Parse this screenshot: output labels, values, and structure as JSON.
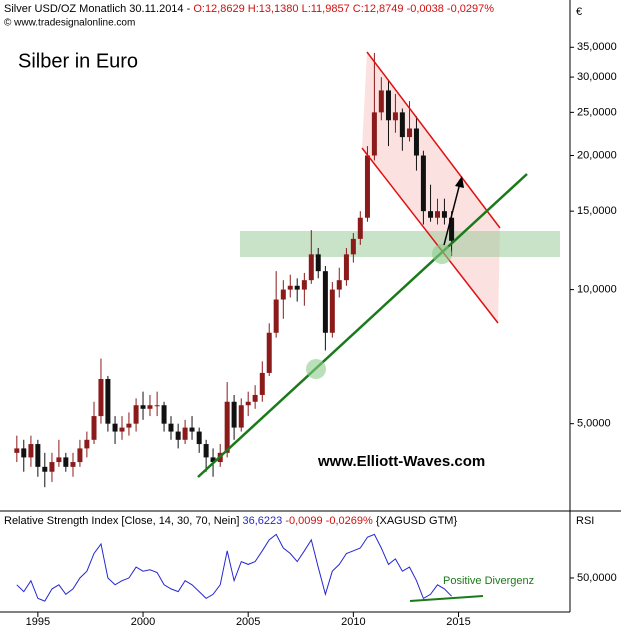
{
  "chart_data": {
    "type": "candlestick",
    "header": "Silver USD/OZ Monatlich  30.11.2014 -",
    "header_values": "O:12,8629 H:13,1380 L:11,9857 C:12,8749 -0,0038 -0,0297%",
    "copyright": "© www.tradesignalonline.com",
    "title": "Silber in Euro",
    "watermark": "www.Elliott-Waves.com",
    "currency_label": "€",
    "log": true,
    "up_color": "#8b1a1a",
    "down_color": "#111111",
    "xlim": [
      1993.2,
      2020.3
    ],
    "xticks": [
      1995,
      2000,
      2005,
      2010,
      2015
    ],
    "ylim": [
      3.2,
      40.3
    ],
    "yticks": [
      {
        "value": 5,
        "label": "5,0000"
      },
      {
        "value": 10,
        "label": "10,0000"
      },
      {
        "value": 15,
        "label": "15,0000"
      },
      {
        "value": 20,
        "label": "20,0000"
      },
      {
        "value": 25,
        "label": "25,0000"
      },
      {
        "value": 30,
        "label": "30,0000"
      },
      {
        "value": 35,
        "label": "35,0000"
      }
    ],
    "x": [
      1994,
      1994.33,
      1994.67,
      1995,
      1995.33,
      1995.67,
      1996,
      1996.33,
      1996.67,
      1997,
      1997.33,
      1997.67,
      1998,
      1998.33,
      1998.67,
      1999,
      1999.33,
      1999.67,
      2000,
      2000.33,
      2000.67,
      2001,
      2001.33,
      2001.67,
      2002,
      2002.33,
      2002.67,
      2003,
      2003.33,
      2003.67,
      2004,
      2004.33,
      2004.67,
      2005,
      2005.33,
      2005.67,
      2006,
      2006.33,
      2006.67,
      2007,
      2007.33,
      2007.67,
      2008,
      2008.33,
      2008.67,
      2009,
      2009.33,
      2009.67,
      2010,
      2010.33,
      2010.67,
      2011,
      2011.33,
      2011.67,
      2012,
      2012.33,
      2012.67,
      2013,
      2013.33,
      2013.67,
      2014,
      2014.33,
      2014.67
    ],
    "ohlc": [
      [
        4.3,
        4.7,
        4.1,
        4.4
      ],
      [
        4.4,
        4.6,
        3.9,
        4.2
      ],
      [
        4.2,
        4.7,
        4.0,
        4.5
      ],
      [
        4.5,
        4.6,
        3.8,
        4.0
      ],
      [
        4.0,
        4.3,
        3.6,
        3.9
      ],
      [
        3.9,
        4.3,
        3.7,
        4.1
      ],
      [
        4.1,
        4.6,
        4.0,
        4.2
      ],
      [
        4.2,
        4.3,
        3.9,
        4.0
      ],
      [
        4.0,
        4.3,
        3.8,
        4.1
      ],
      [
        4.1,
        4.6,
        4.0,
        4.4
      ],
      [
        4.4,
        4.8,
        4.2,
        4.6
      ],
      [
        4.6,
        5.6,
        4.5,
        5.2
      ],
      [
        5.2,
        7.0,
        5.0,
        6.3
      ],
      [
        6.3,
        6.4,
        4.8,
        5.0
      ],
      [
        5.0,
        5.2,
        4.5,
        4.8
      ],
      [
        4.8,
        5.2,
        4.6,
        4.9
      ],
      [
        4.9,
        5.3,
        4.7,
        5.0
      ],
      [
        5.0,
        5.7,
        4.8,
        5.5
      ],
      [
        5.5,
        5.9,
        5.1,
        5.4
      ],
      [
        5.4,
        5.8,
        5.2,
        5.5
      ],
      [
        5.5,
        5.9,
        5.2,
        5.5
      ],
      [
        5.5,
        5.6,
        4.8,
        5.0
      ],
      [
        5.0,
        5.2,
        4.6,
        4.8
      ],
      [
        4.8,
        5.0,
        4.4,
        4.6
      ],
      [
        4.6,
        5.1,
        4.5,
        4.9
      ],
      [
        4.9,
        5.2,
        4.6,
        4.8
      ],
      [
        4.8,
        4.9,
        4.3,
        4.5
      ],
      [
        4.5,
        4.6,
        3.9,
        4.2
      ],
      [
        4.2,
        4.4,
        3.8,
        4.1
      ],
      [
        4.1,
        4.5,
        4.0,
        4.3
      ],
      [
        4.3,
        6.2,
        4.2,
        5.6
      ],
      [
        5.6,
        5.8,
        4.6,
        4.9
      ],
      [
        4.9,
        5.7,
        4.8,
        5.5
      ],
      [
        5.5,
        5.9,
        5.2,
        5.6
      ],
      [
        5.6,
        6.1,
        5.4,
        5.8
      ],
      [
        5.8,
        6.9,
        5.6,
        6.5
      ],
      [
        6.5,
        8.4,
        6.4,
        8.0
      ],
      [
        8.0,
        11.0,
        7.8,
        9.5
      ],
      [
        9.5,
        10.5,
        8.6,
        10.0
      ],
      [
        10.0,
        10.8,
        9.6,
        10.2
      ],
      [
        10.2,
        10.6,
        9.4,
        10.0
      ],
      [
        10.0,
        10.9,
        9.2,
        10.5
      ],
      [
        10.5,
        13.6,
        10.3,
        12.0
      ],
      [
        12.0,
        12.4,
        10.6,
        11.0
      ],
      [
        11.0,
        11.3,
        7.3,
        8.0
      ],
      [
        8.0,
        10.4,
        7.8,
        10.0
      ],
      [
        10.0,
        11.2,
        9.6,
        10.5
      ],
      [
        10.5,
        12.4,
        10.2,
        12.0
      ],
      [
        12.0,
        13.4,
        11.5,
        13.0
      ],
      [
        13.0,
        15.0,
        12.6,
        14.5
      ],
      [
        14.5,
        21.0,
        14.2,
        20.0
      ],
      [
        20.0,
        34.0,
        19.5,
        25.0
      ],
      [
        25.0,
        30.0,
        24.0,
        28.0
      ],
      [
        28.0,
        29.5,
        21.0,
        24.0
      ],
      [
        24.0,
        27.5,
        22.5,
        25.0
      ],
      [
        25.0,
        25.5,
        20.5,
        22.0
      ],
      [
        22.0,
        26.5,
        21.5,
        23.0
      ],
      [
        23.0,
        24.5,
        18.5,
        20.0
      ],
      [
        20.0,
        20.5,
        14.0,
        15.0
      ],
      [
        15.0,
        17.2,
        14.2,
        14.5
      ],
      [
        14.5,
        16.0,
        14.0,
        15.0
      ],
      [
        15.0,
        16.0,
        14.0,
        14.5
      ],
      [
        14.5,
        15.0,
        11.9,
        12.87
      ]
    ],
    "rsi_panel": {
      "type": "line",
      "title": "Relative Strength Index [Close, 14, 30, 70, Nein]",
      "last_value": "36,6223",
      "change": "-0,0099 -0,0269%",
      "symbol": "{XAGUSD GTM}",
      "axis_label": "RSI",
      "annotation": "Positive Divergenz",
      "color": "#2626d0",
      "ylim": [
        25,
        97
      ],
      "yticks": [
        {
          "value": 50,
          "label": "50,0000"
        }
      ],
      "values": [
        45,
        40,
        48,
        35,
        33,
        42,
        45,
        38,
        42,
        50,
        55,
        68,
        75,
        50,
        45,
        48,
        50,
        58,
        55,
        56,
        54,
        45,
        42,
        40,
        48,
        45,
        40,
        35,
        38,
        45,
        70,
        48,
        62,
        60,
        62,
        70,
        78,
        82,
        72,
        68,
        62,
        70,
        78,
        58,
        38,
        55,
        60,
        68,
        70,
        72,
        80,
        82,
        72,
        60,
        64,
        55,
        58,
        48,
        35,
        38,
        45,
        42,
        36.6
      ]
    }
  }
}
